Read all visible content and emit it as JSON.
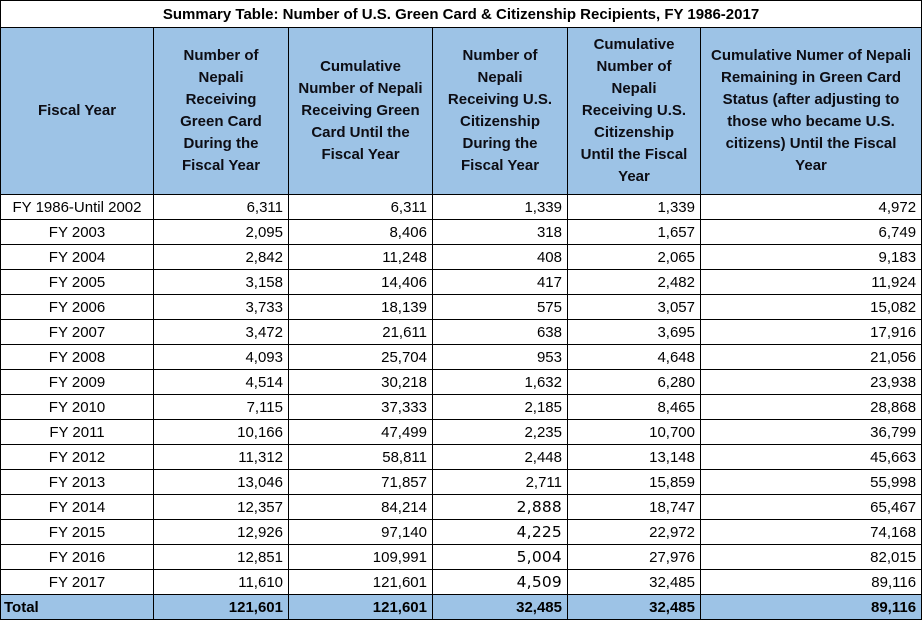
{
  "title": "Summary Table: Number of U.S. Green Card & Citizenship Recipients, FY 1986-2017",
  "colors": {
    "header_bg": "#9DC3E6",
    "border": "#000000",
    "text": "#000000"
  },
  "columns": [
    "Fiscal Year",
    "Number of Nepali Receiving Green Card During the Fiscal Year",
    "Cumulative Number of Nepali Receiving Green Card Until the Fiscal Year",
    "Number of Nepali Receiving U.S. Citizenship During the Fiscal Year",
    "Cumulative Number of Nepali Receiving U.S. Citizenship Until the Fiscal Year",
    "Cumulative Numer of Nepali Remaining in Green Card Status (after adjusting to those who became U.S. citizens) Until the Fiscal Year"
  ],
  "rows": [
    {
      "fiscal_year": "FY 1986-Until 2002",
      "values": [
        "6,311",
        "6,311",
        "1,339",
        "1,339",
        "4,972"
      ]
    },
    {
      "fiscal_year": "FY 2003",
      "values": [
        "2,095",
        "8,406",
        "318",
        "1,657",
        "6,749"
      ]
    },
    {
      "fiscal_year": "FY 2004",
      "values": [
        "2,842",
        "11,248",
        "408",
        "2,065",
        "9,183"
      ]
    },
    {
      "fiscal_year": "FY 2005",
      "values": [
        "3,158",
        "14,406",
        "417",
        "2,482",
        "11,924"
      ]
    },
    {
      "fiscal_year": "FY 2006",
      "values": [
        "3,733",
        "18,139",
        "575",
        "3,057",
        "15,082"
      ]
    },
    {
      "fiscal_year": "FY 2007",
      "values": [
        "3,472",
        "21,611",
        "638",
        "3,695",
        "17,916"
      ]
    },
    {
      "fiscal_year": "FY 2008",
      "values": [
        "4,093",
        "25,704",
        "953",
        "4,648",
        "21,056"
      ]
    },
    {
      "fiscal_year": "FY 2009",
      "values": [
        "4,514",
        "30,218",
        "1,632",
        "6,280",
        "23,938"
      ]
    },
    {
      "fiscal_year": "FY 2010",
      "values": [
        "7,115",
        "37,333",
        "2,185",
        "8,465",
        "28,868"
      ]
    },
    {
      "fiscal_year": "FY 2011",
      "values": [
        "10,166",
        "47,499",
        "2,235",
        "10,700",
        "36,799"
      ]
    },
    {
      "fiscal_year": "FY 2012",
      "values": [
        "11,312",
        "58,811",
        "2,448",
        "13,148",
        "45,663"
      ]
    },
    {
      "fiscal_year": "FY 2013",
      "values": [
        "13,046",
        "71,857",
        "2,711",
        "15,859",
        "55,998"
      ]
    },
    {
      "fiscal_year": "FY 2014",
      "values": [
        "12,357",
        "84,214",
        "2,888",
        "18,747",
        "65,467"
      ],
      "alt_cols": [
        2
      ]
    },
    {
      "fiscal_year": "FY 2015",
      "values": [
        "12,926",
        "97,140",
        "4,225",
        "22,972",
        "74,168"
      ],
      "alt_cols": [
        2
      ]
    },
    {
      "fiscal_year": "FY 2016",
      "values": [
        "12,851",
        "109,991",
        "5,004",
        "27,976",
        "82,015"
      ],
      "alt_cols": [
        2
      ]
    },
    {
      "fiscal_year": "FY 2017",
      "values": [
        "11,610",
        "121,601",
        "4,509",
        "32,485",
        "89,116"
      ],
      "alt_cols": [
        2
      ]
    }
  ],
  "total_row": {
    "label": "Total",
    "values": [
      "121,601",
      "121,601",
      "32,485",
      "32,485",
      "89,116"
    ]
  },
  "chart_data": {
    "type": "table",
    "title": "Summary Table: Number of U.S. Green Card & Citizenship Recipients, FY 1986-2017",
    "columns": [
      "Fiscal Year",
      "Number of Nepali Receiving Green Card During the Fiscal Year",
      "Cumulative Number of Nepali Receiving Green Card Until the Fiscal Year",
      "Number of Nepali Receiving U.S. Citizenship During the Fiscal Year",
      "Cumulative Number of Nepali Receiving U.S. Citizenship Until the Fiscal Year",
      "Cumulative Numer of Nepali Remaining in Green Card Status (after adjusting to those who became U.S. citizens) Until the Fiscal Year"
    ],
    "rows": [
      [
        "FY 1986-Until 2002",
        6311,
        6311,
        1339,
        1339,
        4972
      ],
      [
        "FY 2003",
        2095,
        8406,
        318,
        1657,
        6749
      ],
      [
        "FY 2004",
        2842,
        11248,
        408,
        2065,
        9183
      ],
      [
        "FY 2005",
        3158,
        14406,
        417,
        2482,
        11924
      ],
      [
        "FY 2006",
        3733,
        18139,
        575,
        3057,
        15082
      ],
      [
        "FY 2007",
        3472,
        21611,
        638,
        3695,
        17916
      ],
      [
        "FY 2008",
        4093,
        25704,
        953,
        4648,
        21056
      ],
      [
        "FY 2009",
        4514,
        30218,
        1632,
        6280,
        23938
      ],
      [
        "FY 2010",
        7115,
        37333,
        2185,
        8465,
        28868
      ],
      [
        "FY 2011",
        10166,
        47499,
        2235,
        10700,
        36799
      ],
      [
        "FY 2012",
        11312,
        58811,
        2448,
        13148,
        45663
      ],
      [
        "FY 2013",
        13046,
        71857,
        2711,
        15859,
        55998
      ],
      [
        "FY 2014",
        12357,
        84214,
        2888,
        18747,
        65467
      ],
      [
        "FY 2015",
        12926,
        97140,
        4225,
        22972,
        74168
      ],
      [
        "FY 2016",
        12851,
        109991,
        5004,
        27976,
        82015
      ],
      [
        "FY 2017",
        11610,
        121601,
        4509,
        32485,
        89116
      ],
      [
        "Total",
        121601,
        121601,
        32485,
        32485,
        89116
      ]
    ]
  }
}
